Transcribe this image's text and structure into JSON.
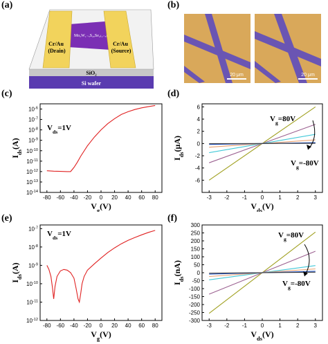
{
  "panels": {
    "a": {
      "label": "(a)",
      "texts": {
        "material": "MoₓW₁₋ₓS₂ₓSe₂₍₁₋ₓ₎",
        "drain": "Cr/Au\n(Drain)",
        "source": "Cr/Au\n(Source)",
        "oxide": "SiO₂",
        "substrate": "Si wafer"
      },
      "colors": {
        "electrode": "#f2d35c",
        "flake": "#7b2fb4",
        "oxide": "#d9d9d9",
        "wafer": "#5a3bb0"
      }
    },
    "b": {
      "label": "(b)",
      "scalebar_left": "20 μm",
      "scalebar_right": "20 μm",
      "colors": {
        "background": "#d9a85a",
        "stripe": "#6a55b3"
      }
    },
    "c": {
      "label": "(c)",
      "annotation": "V_ds=1V",
      "xlabel": "V_g(V)",
      "ylabel": "I_ds(A)"
    },
    "d": {
      "label": "(d)",
      "xlabel": "V_ds(V)",
      "ylabel": "I_ds(μA)",
      "annotation_top": "V_g=80V",
      "annotation_bottom": "V_g=-80V"
    },
    "e": {
      "label": "(e)",
      "annotation": "V_ds=1V",
      "xlabel": "V_g(V)",
      "ylabel": "I_ds(A)"
    },
    "f": {
      "label": "(f)",
      "xlabel": "V_ds(V)",
      "ylabel": "I_ds(nA)",
      "annotation_top": "V_g=80V",
      "annotation_bottom": "V_g=-80V"
    }
  },
  "chart_data": [
    {
      "id": "c",
      "type": "line",
      "xlim": [
        -90,
        90
      ],
      "ylim_log10": [
        -14,
        -5.5
      ],
      "log_y": true,
      "x_ticks": [
        -80,
        -60,
        -40,
        -20,
        0,
        20,
        40,
        60,
        80
      ],
      "y_ticks": [
        "10^-6",
        "10^-7",
        "10^-8",
        "10^-9",
        "10^-10",
        "10^-11",
        "10^-12",
        "10^-13",
        "10^-14"
      ],
      "series": [
        {
          "color": "#e02020",
          "x": [
            -80,
            -70,
            -60,
            -50,
            -45,
            -40,
            -35,
            -30,
            -20,
            -10,
            0,
            10,
            20,
            30,
            40,
            50,
            60,
            70,
            80
          ],
          "y": [
            1.2e-12,
            1.1e-12,
            1.05e-12,
            1e-12,
            1e-12,
            2.5e-12,
            8e-12,
            3e-11,
            3e-10,
            2e-09,
            1e-08,
            4e-08,
            1.2e-07,
            3e-07,
            5.5e-07,
            9e-07,
            1.3e-06,
            1.7e-06,
            2.2e-06
          ]
        }
      ]
    },
    {
      "id": "d",
      "type": "line",
      "xlim": [
        -3.4,
        3.4
      ],
      "ylim": [
        -8,
        6.5
      ],
      "x_ticks": [
        -3,
        -2,
        -1,
        0,
        1,
        2,
        3
      ],
      "y_ticks": [
        6,
        4,
        2,
        0,
        -2,
        -4,
        -6
      ],
      "series": [
        {
          "color": "#a0a020",
          "slope": 2.0
        },
        {
          "color": "#9b6090",
          "slope": 1.05
        },
        {
          "color": "#40c8d8",
          "slope": 0.5
        },
        {
          "color": "#e8a070",
          "slope": 0.2
        },
        {
          "color": "#2050c0",
          "slope": 0.05
        },
        {
          "color": "#404040",
          "slope": 0.01
        }
      ]
    },
    {
      "id": "e",
      "type": "line",
      "xlim": [
        -90,
        90
      ],
      "ylim_log10": [
        -12,
        -6.8
      ],
      "log_y": true,
      "x_ticks": [
        -80,
        -60,
        -40,
        -20,
        0,
        20,
        40,
        60,
        80
      ],
      "y_ticks": [
        "10^-7",
        "10^-8",
        "10^-9",
        "10^-10",
        "10^-11",
        "10^-12"
      ],
      "series": [
        {
          "color": "#e02020",
          "x": [
            -80,
            -77,
            -74,
            -72,
            -70,
            -68,
            -65,
            -60,
            -55,
            -50,
            -45,
            -40,
            -37,
            -34,
            -32,
            -30,
            -28,
            -25,
            -20,
            -10,
            0,
            10,
            20,
            30,
            40,
            50,
            60,
            70,
            80
          ],
          "y": [
            1e-09,
            6e-10,
            2.5e-10,
            7e-11,
            1.5e-11,
            7e-11,
            2.5e-10,
            5e-10,
            6e-10,
            5.5e-10,
            4e-10,
            2e-10,
            6e-11,
            1.5e-11,
            1e-11,
            3e-11,
            1e-10,
            2.5e-10,
            5.5e-10,
            1.2e-09,
            2.5e-09,
            5e-09,
            9e-09,
            1.5e-08,
            2.3e-08,
            3.3e-08,
            4.6e-08,
            6.2e-08,
            8e-08
          ]
        }
      ]
    },
    {
      "id": "f",
      "type": "line",
      "xlim": [
        -3.4,
        3.4
      ],
      "ylim": [
        -300,
        300
      ],
      "x_ticks": [
        -3,
        -2,
        -1,
        0,
        1,
        2,
        3
      ],
      "y_ticks": [
        300,
        250,
        200,
        150,
        100,
        50,
        0,
        -50,
        -100,
        -150,
        -200,
        -250,
        -300
      ],
      "series": [
        {
          "color": "#a0a020",
          "slope": 85
        },
        {
          "color": "#9b6090",
          "slope": 45
        },
        {
          "color": "#40c8d8",
          "slope": 15
        },
        {
          "color": "#e8a070",
          "slope": 8
        },
        {
          "color": "#2050c0",
          "slope": 3
        },
        {
          "color": "#404040",
          "slope": 1
        }
      ]
    }
  ]
}
